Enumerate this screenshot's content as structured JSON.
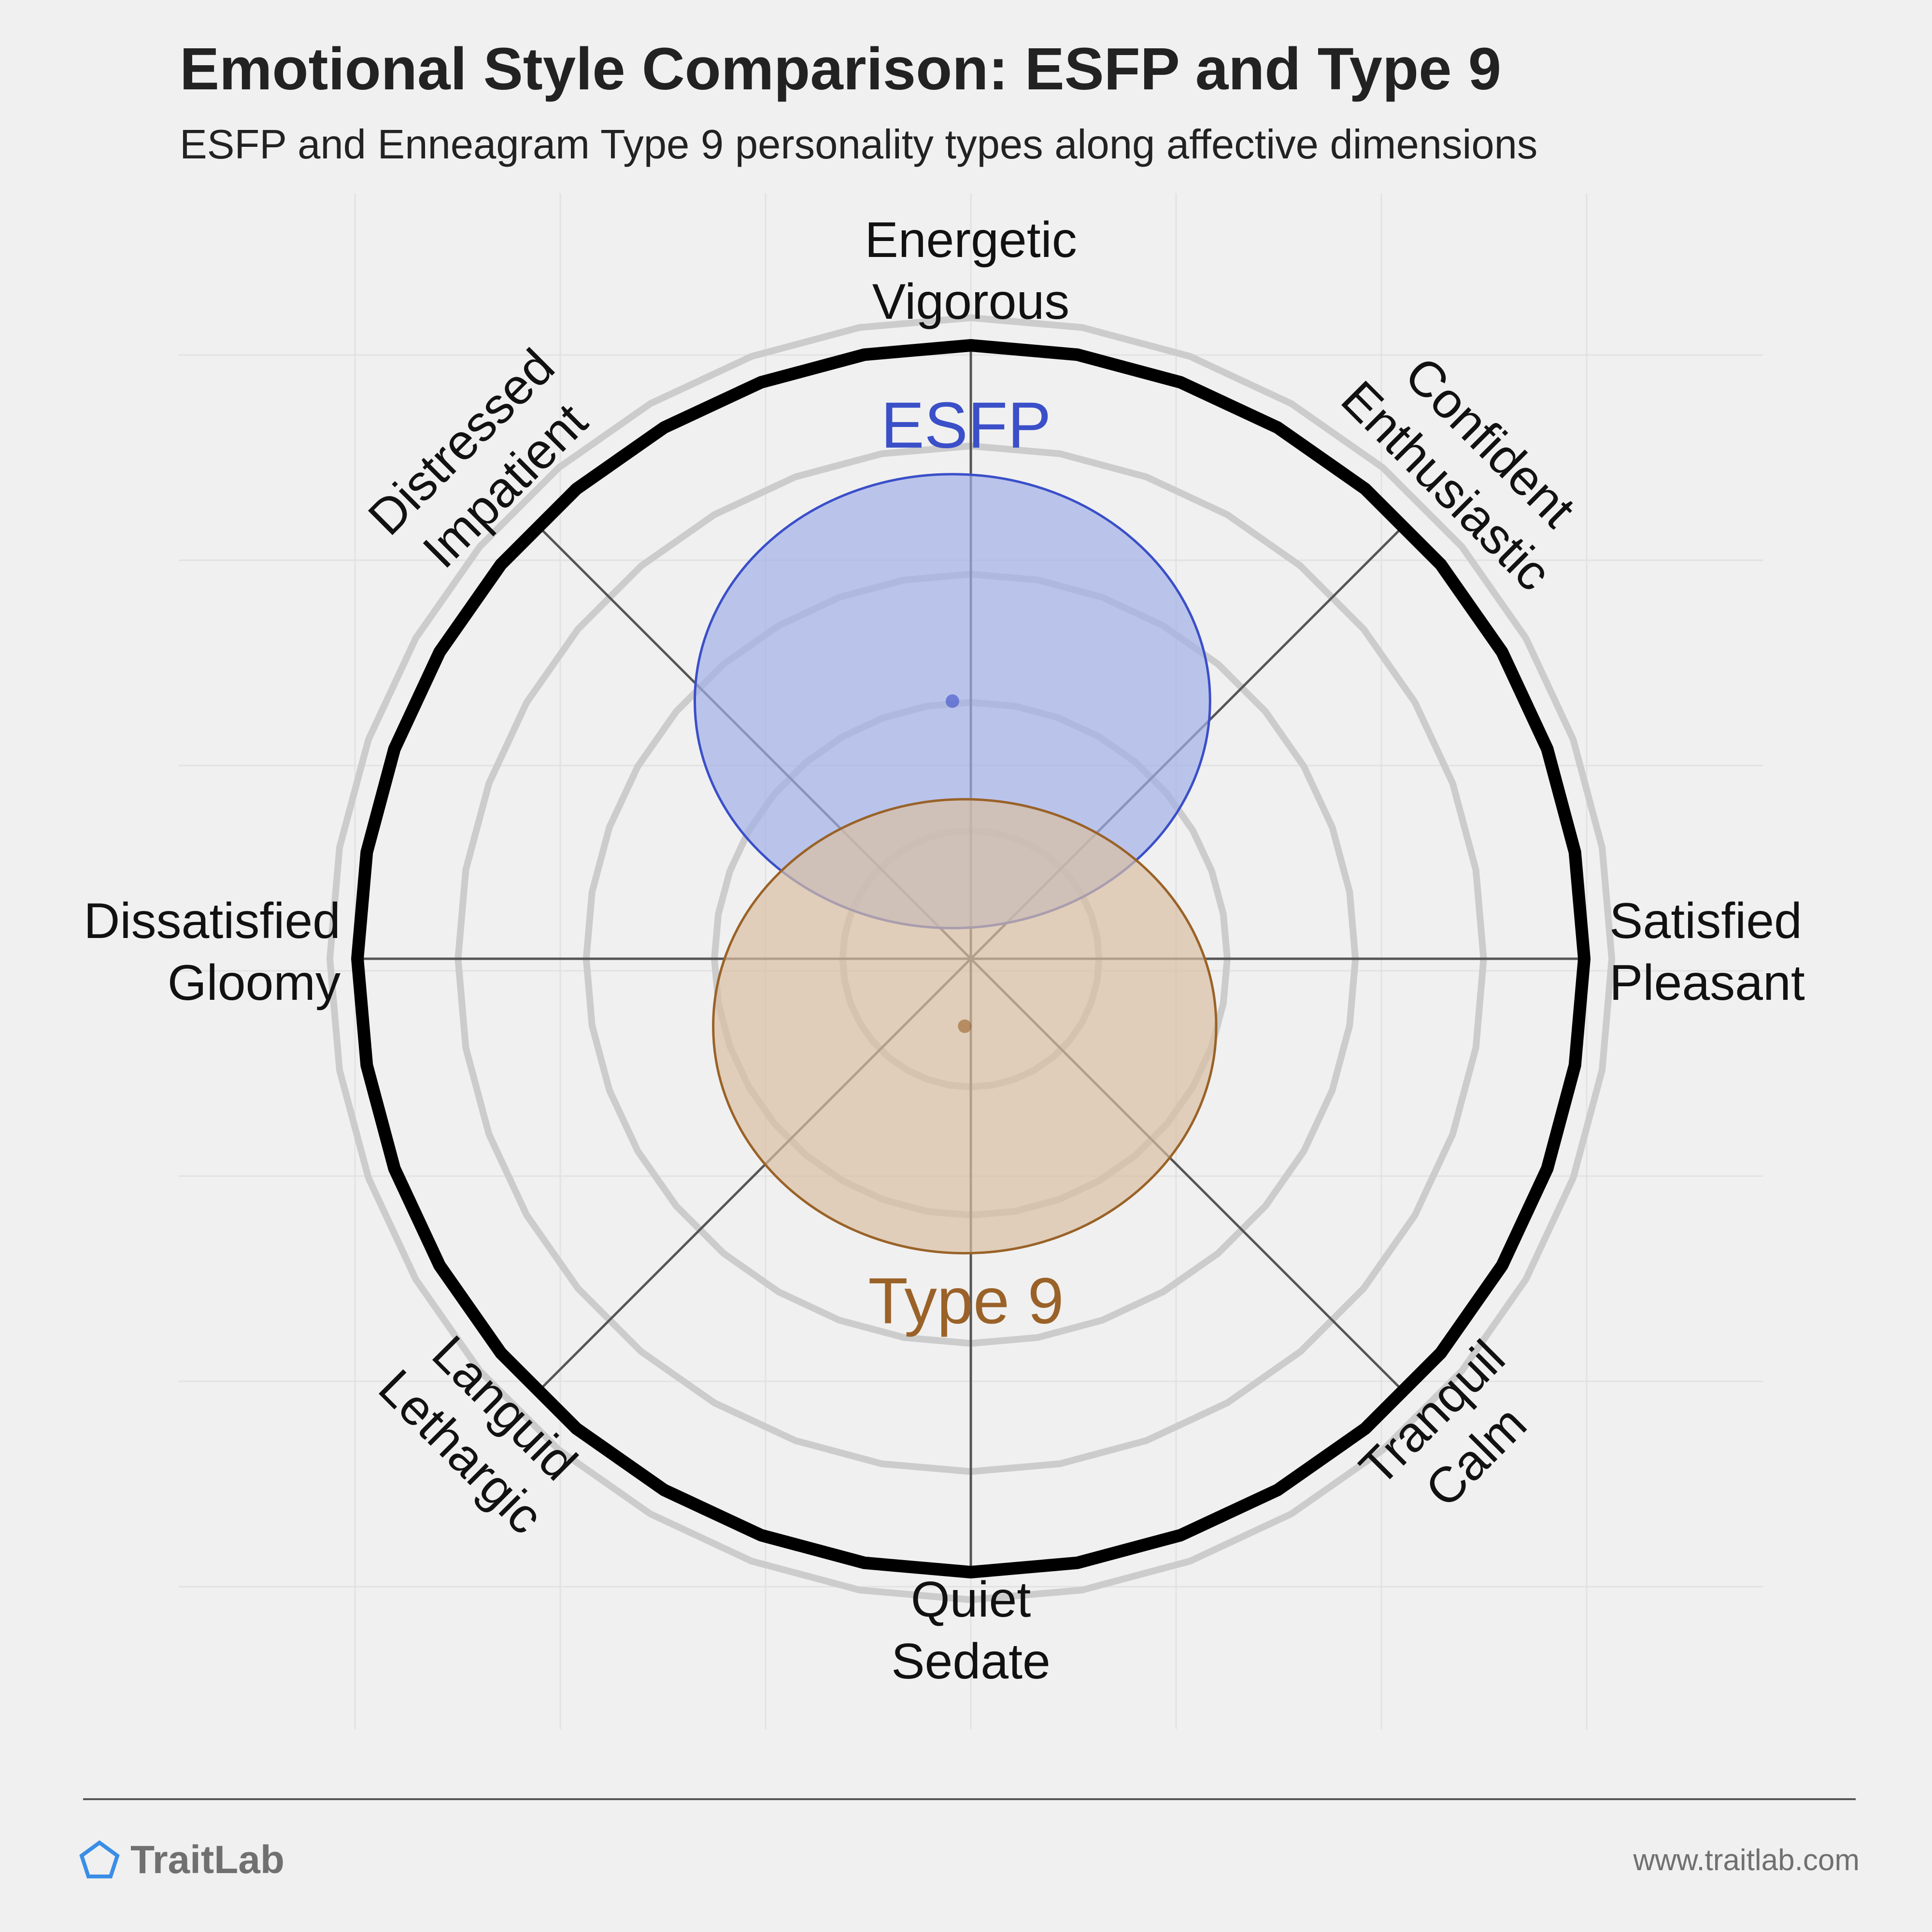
{
  "header": {
    "title": "Emotional Style Comparison: ESFP and Type 9",
    "subtitle": "ESFP and Enneagram Type 9 personality types along affective dimensions"
  },
  "chart_data": {
    "type": "scatter",
    "title": "Emotional Style Comparison: ESFP and Type 9",
    "subtitle": "ESFP and Enneagram Type 9 personality types along affective dimensions",
    "axes": [
      {
        "id": "top",
        "lines": [
          "Energetic",
          "Vigorous"
        ]
      },
      {
        "id": "top-right",
        "lines": [
          "Confident",
          "Enthusiastic"
        ]
      },
      {
        "id": "right",
        "lines": [
          "Satisfied",
          "Pleasant"
        ]
      },
      {
        "id": "bottom-right",
        "lines": [
          "Tranquil",
          "Calm"
        ]
      },
      {
        "id": "bottom",
        "lines": [
          "Quiet",
          "Sedate"
        ]
      },
      {
        "id": "bottom-left",
        "lines": [
          "Languid",
          "Lethargic"
        ]
      },
      {
        "id": "left",
        "lines": [
          "Dissatisfied",
          "Gloomy"
        ]
      },
      {
        "id": "top-left",
        "lines": [
          "Distressed",
          "Impatient"
        ]
      }
    ],
    "x_range": [
      -1,
      1
    ],
    "y_range": [
      -1,
      1
    ],
    "series": [
      {
        "name": "ESFP",
        "x": -0.03,
        "y": 0.42,
        "rx": 0.42,
        "ry": 0.37,
        "color": "#3a4fc8",
        "fill": "#a3b0e8",
        "label_position": "above"
      },
      {
        "name": "Type 9",
        "x": -0.01,
        "y": -0.11,
        "rx": 0.41,
        "ry": 0.37,
        "color": "#9a6228",
        "fill": "#d8bfa2",
        "label_position": "below"
      }
    ]
  },
  "footer": {
    "brand": "TraitLab",
    "url": "www.traitlab.com"
  },
  "colors": {
    "background": "#f0f0f0",
    "outer_ring": "#000000",
    "grid_ring": "#cccccc",
    "axis_line": "#555555",
    "brand_icon": "#3a8ee6"
  }
}
